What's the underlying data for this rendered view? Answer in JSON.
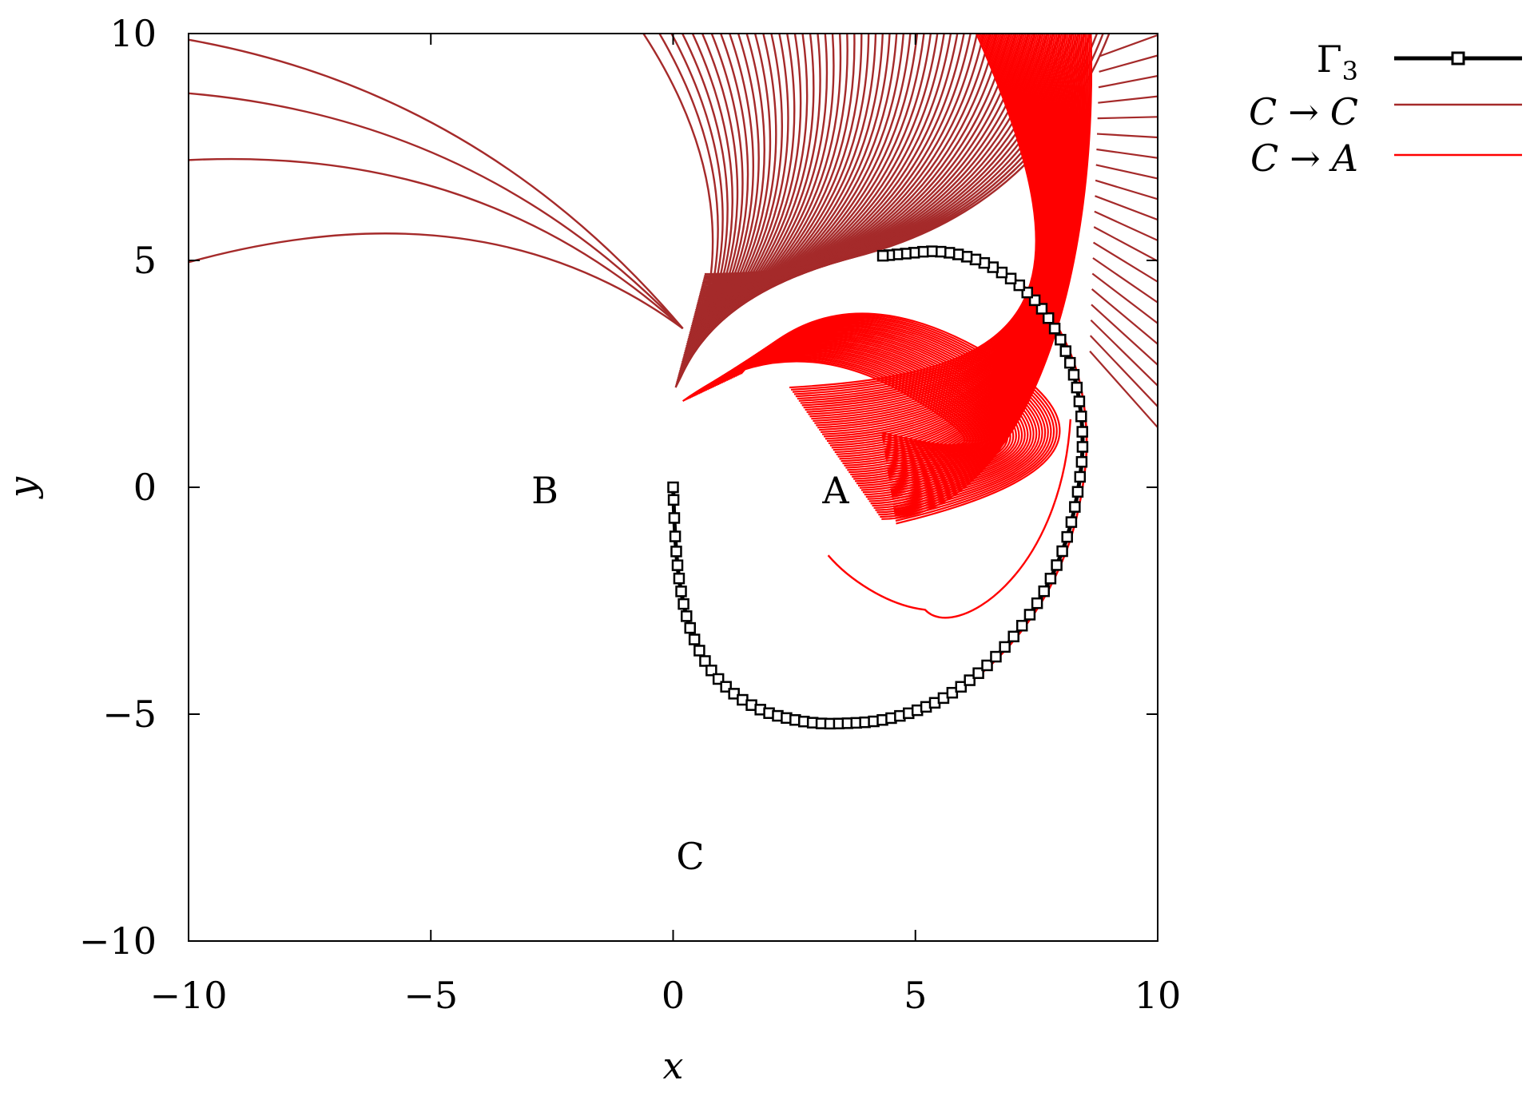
{
  "chart_data": {
    "type": "line",
    "xlabel": "x",
    "ylabel": "y",
    "xlim": [
      -10,
      10
    ],
    "ylim": [
      -10,
      10
    ],
    "xticks": [
      -10,
      -5,
      0,
      5,
      10
    ],
    "yticks": [
      -10,
      -5,
      0,
      5,
      10
    ],
    "xtick_labels": [
      "−10",
      "−5",
      "0",
      "5",
      "10"
    ],
    "ytick_labels": [
      "−10",
      "−5",
      "0",
      "5",
      "10"
    ],
    "grid": false,
    "legend_position": "outside-top-right",
    "annotations": [
      {
        "text": "A",
        "x": 3.4,
        "y": 0
      },
      {
        "text": "B",
        "x": -2.6,
        "y": 0
      },
      {
        "text": "C",
        "x": 0.4,
        "y": -8
      }
    ],
    "series": [
      {
        "name": "Γ3",
        "legend_base": "Γ",
        "legend_sub": "3",
        "color": "#000000",
        "marker": "square",
        "x": [
          0.0,
          0.05,
          0.15,
          0.35,
          0.7,
          1.2,
          1.8,
          2.4,
          3.0,
          3.6,
          4.2,
          4.8,
          5.4,
          6.0,
          6.6,
          7.2,
          7.7,
          8.1,
          8.35,
          8.45,
          8.35,
          8.1,
          7.7,
          7.2,
          6.6,
          6.0,
          5.4,
          4.8,
          4.3
        ],
        "y": [
          0.0,
          -1.2,
          -2.2,
          -3.1,
          -3.9,
          -4.5,
          -4.9,
          -5.1,
          -5.2,
          -5.2,
          -5.15,
          -5.0,
          -4.75,
          -4.35,
          -3.8,
          -3.05,
          -2.2,
          -1.2,
          -0.1,
          1.0,
          2.1,
          3.0,
          3.8,
          4.4,
          4.85,
          5.1,
          5.2,
          5.15,
          5.1
        ]
      },
      {
        "name": "C → C",
        "legend_lhs": "C",
        "legend_arrow": "→",
        "legend_rhs": "C",
        "color": "#a52a2a"
      },
      {
        "name": "C → A",
        "legend_lhs": "C",
        "legend_arrow": "→",
        "legend_rhs": "A",
        "color": "#ff0000"
      }
    ]
  }
}
